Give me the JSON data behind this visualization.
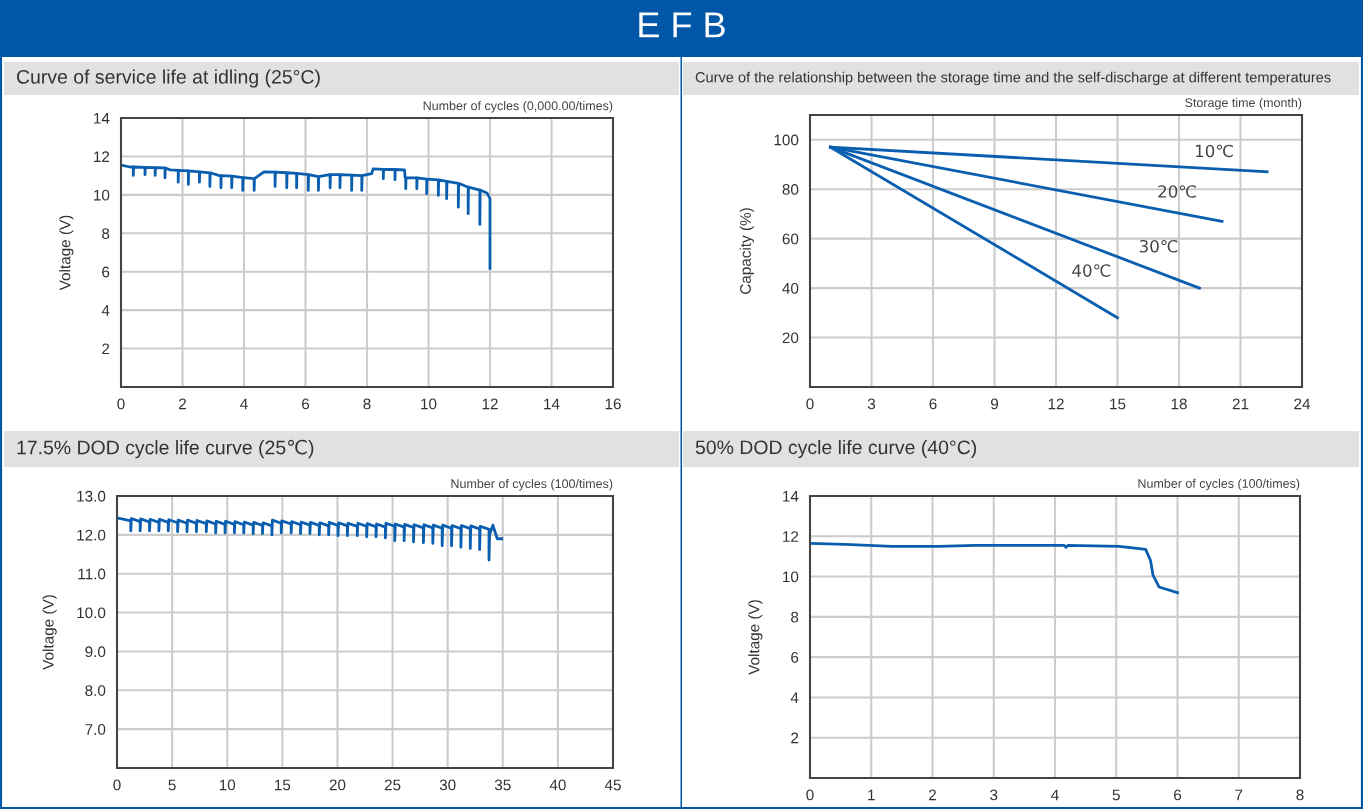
{
  "chart_data": [
    {
      "type": "line",
      "title": "Curve of service life at idling (25°C)",
      "xlabel": "Number of cycles (0,000.00/times)",
      "ylabel": "Voltage (V)",
      "annotations": [
        "E F B"
      ],
      "xlim": [
        0,
        16
      ],
      "xticks": [
        0,
        2,
        4,
        6,
        8,
        10,
        12,
        14,
        16
      ],
      "ylim": [
        0,
        14
      ],
      "yticks": [
        2,
        4,
        6,
        8,
        10,
        12,
        14
      ],
      "grid": true,
      "series": [
        {
          "color": "#0a5eb0",
          "x": [
            0,
            0.3,
            0.4,
            0.4,
            0.41,
            0.78,
            0.78,
            0.79,
            1.11,
            1.11,
            1.12,
            1.43,
            1.43,
            1.44,
            1.6,
            1.86,
            1.86,
            1.87,
            2.19,
            2.19,
            2.2,
            2.55,
            2.55,
            2.56,
            2.89,
            2.89,
            2.9,
            3.2,
            3.25,
            3.25,
            3.26,
            3.6,
            3.6,
            3.61,
            3.96,
            3.96,
            3.97,
            4.33,
            4.33,
            4.34,
            4.65,
            5.01,
            5.01,
            5.02,
            5.39,
            5.39,
            5.4,
            5.71,
            5.71,
            5.72,
            6.09,
            6.09,
            6.1,
            6.42,
            6.42,
            6.43,
            6.6,
            6.8,
            6.8,
            6.81,
            7.12,
            7.12,
            7.13,
            7.5,
            7.5,
            7.51,
            7.83,
            7.83,
            7.84,
            8.15,
            8.2,
            8.53,
            8.53,
            8.54,
            8.91,
            8.91,
            8.92,
            9.22,
            9.24,
            9.26,
            9.26,
            9.27,
            9.62,
            9.62,
            9.63,
            9.94,
            9.94,
            9.95,
            10.32,
            10.32,
            10.33,
            10.59,
            10.59,
            10.6,
            10.97,
            10.97,
            10.98,
            11.29,
            11.29,
            11.3,
            11.67,
            11.67,
            11.68,
            11.9,
            12.0,
            12.0
          ],
          "values": [
            11.55,
            11.45,
            11.45,
            11.01,
            11.45,
            11.43,
            11.05,
            11.43,
            11.42,
            11.01,
            11.42,
            11.4,
            10.89,
            11.4,
            11.3,
            11.28,
            10.66,
            11.28,
            11.25,
            10.54,
            11.25,
            11.2,
            10.66,
            11.2,
            11.15,
            10.44,
            11.15,
            11.0,
            11.0,
            10.37,
            11.0,
            10.98,
            10.37,
            10.98,
            10.9,
            10.23,
            10.9,
            10.85,
            10.23,
            10.85,
            11.2,
            11.18,
            10.44,
            11.18,
            11.15,
            10.37,
            11.15,
            11.12,
            10.37,
            11.12,
            11.05,
            10.23,
            11.05,
            10.95,
            10.23,
            10.95,
            11.0,
            11.05,
            10.37,
            11.05,
            11.05,
            10.37,
            11.05,
            11.03,
            10.23,
            11.03,
            11.0,
            10.23,
            11.0,
            11.1,
            11.35,
            11.33,
            10.84,
            11.33,
            11.32,
            10.79,
            11.32,
            11.3,
            10.9,
            10.9,
            10.32,
            10.9,
            10.88,
            10.32,
            10.88,
            10.82,
            10.06,
            10.82,
            10.78,
            9.97,
            10.78,
            10.7,
            9.8,
            10.7,
            10.6,
            9.36,
            10.6,
            10.4,
            9.02,
            10.4,
            10.25,
            8.46,
            10.25,
            10.1,
            9.8,
            6.17
          ]
        }
      ]
    },
    {
      "type": "line",
      "title": "Curve of the relationship between the storage time and the self-discharge at different temperatures",
      "xlabel": "Storage time (month)",
      "ylabel": "Capacity (%)",
      "xlim": [
        0,
        24
      ],
      "xticks": [
        0,
        3,
        6,
        9,
        12,
        15,
        18,
        21,
        24
      ],
      "ylim": [
        0,
        110
      ],
      "yticks": [
        20,
        40,
        60,
        80,
        100
      ],
      "grid": true,
      "series": [
        {
          "name": "10℃",
          "color": "#0a5eb0",
          "x": [
            1,
            22.3
          ],
          "values": [
            97,
            87
          ]
        },
        {
          "name": "20℃",
          "color": "#0a5eb0",
          "x": [
            1,
            20.1
          ],
          "values": [
            97,
            67
          ]
        },
        {
          "name": "30℃",
          "color": "#0a5eb0",
          "x": [
            1,
            19
          ],
          "values": [
            97,
            40
          ]
        },
        {
          "name": "40℃",
          "color": "#0a5eb0",
          "x": [
            1,
            15
          ],
          "values": [
            97,
            28
          ]
        }
      ]
    },
    {
      "type": "line",
      "title": "17.5% DOD cycle life curve (25℃)",
      "xlabel": "Number of cycles (100/times)",
      "ylabel": "Voltage (V)",
      "xlim": [
        0,
        45
      ],
      "xticks": [
        0,
        5,
        10,
        15,
        20,
        25,
        30,
        35,
        40,
        45
      ],
      "ylim": [
        6,
        13
      ],
      "yticks": [
        {
          "value": 7,
          "label": "7.0"
        },
        {
          "value": 8,
          "label": "8.0"
        },
        {
          "value": 9,
          "label": "9.0"
        },
        {
          "value": 10,
          "label": "10.0"
        },
        {
          "value": 11,
          "label": "11.0"
        },
        {
          "value": 12,
          "label": "12.0"
        },
        {
          "value": 13,
          "label": "13.0"
        }
      ],
      "grid": true,
      "series": [
        {
          "color": "#0a5eb0",
          "x": [
            0,
            1.25,
            1.25,
            1.3,
            2.1,
            2.1,
            2.15,
            2.95,
            2.95,
            3.0,
            3.8,
            3.8,
            3.85,
            4.65,
            4.65,
            4.7,
            5.5,
            5.5,
            5.55,
            6.35,
            6.35,
            6.4,
            7.2,
            7.2,
            7.25,
            8.1,
            8.1,
            8.15,
            8.95,
            8.95,
            9.0,
            9.8,
            9.8,
            9.85,
            10.65,
            10.65,
            10.7,
            11.5,
            11.5,
            11.55,
            12.35,
            12.35,
            12.4,
            13.2,
            13.2,
            13.25,
            14.05,
            14.05,
            14.1,
            14.9,
            14.9,
            14.95,
            15.8,
            15.8,
            15.85,
            16.65,
            16.65,
            16.7,
            17.5,
            17.5,
            17.55,
            18.35,
            18.35,
            18.4,
            19.2,
            19.2,
            19.25,
            20.05,
            20.05,
            20.1,
            20.9,
            20.9,
            20.95,
            21.8,
            21.8,
            21.85,
            22.65,
            22.65,
            22.7,
            23.5,
            23.5,
            23.55,
            24.35,
            24.35,
            24.4,
            25.2,
            25.2,
            25.25,
            26.05,
            26.05,
            26.1,
            26.9,
            26.9,
            26.95,
            27.8,
            27.8,
            27.85,
            28.65,
            28.65,
            28.7,
            29.5,
            29.5,
            29.55,
            30.35,
            30.35,
            30.4,
            31.2,
            31.2,
            31.25,
            32.05,
            32.05,
            32.1,
            32.9,
            32.9,
            32.95,
            33.75,
            33.75,
            33.8,
            34.1,
            34.5,
            34.9
          ],
          "values": [
            12.44,
            12.36,
            12.1,
            12.42,
            12.34,
            12.1,
            12.41,
            12.33,
            12.1,
            12.4,
            12.32,
            12.1,
            12.4,
            12.32,
            12.1,
            12.39,
            12.31,
            12.08,
            12.38,
            12.3,
            12.08,
            12.38,
            12.3,
            12.08,
            12.37,
            12.29,
            12.08,
            12.36,
            12.28,
            12.05,
            12.35,
            12.27,
            12.05,
            12.35,
            12.27,
            12.05,
            12.34,
            12.26,
            12.05,
            12.33,
            12.25,
            12.03,
            12.32,
            12.24,
            12.03,
            12.31,
            12.23,
            12.0,
            12.38,
            12.3,
            12.05,
            12.36,
            12.28,
            12.05,
            12.34,
            12.26,
            12.03,
            12.33,
            12.25,
            12.03,
            12.32,
            12.24,
            12.0,
            12.31,
            12.23,
            12.0,
            12.32,
            12.24,
            11.98,
            12.31,
            12.23,
            11.98,
            12.3,
            12.22,
            11.98,
            12.3,
            12.22,
            11.95,
            12.29,
            12.21,
            11.95,
            12.28,
            12.2,
            11.92,
            12.3,
            12.22,
            11.85,
            12.28,
            12.2,
            11.85,
            12.27,
            12.19,
            11.82,
            12.26,
            12.18,
            11.8,
            12.26,
            12.18,
            11.78,
            12.25,
            12.17,
            11.72,
            12.25,
            12.17,
            11.72,
            12.24,
            12.16,
            11.68,
            12.24,
            12.16,
            11.65,
            12.23,
            12.15,
            11.62,
            12.22,
            12.14,
            11.35,
            12.0,
            12.25,
            11.9,
            11.9
          ]
        }
      ]
    },
    {
      "type": "line",
      "title": "50% DOD cycle life curve (40°C)",
      "xlabel": "Number of cycles (100/times)",
      "ylabel": "Voltage (V)",
      "xlim": [
        0,
        8
      ],
      "xticks": [
        0,
        1,
        2,
        3,
        4,
        5,
        6,
        7,
        8
      ],
      "ylim": [
        0,
        14
      ],
      "yticks": [
        2,
        4,
        6,
        8,
        10,
        12,
        14
      ],
      "grid": true,
      "series": [
        {
          "color": "#0a5eb0",
          "x": [
            0,
            0.57,
            1.34,
            2.1,
            2.7,
            4.15,
            4.18,
            4.21,
            5.05,
            5.48,
            5.56,
            5.6,
            5.7,
            6.0
          ],
          "values": [
            11.65,
            11.6,
            11.5,
            11.5,
            11.55,
            11.55,
            11.45,
            11.55,
            11.5,
            11.35,
            10.8,
            10.07,
            9.48,
            9.2
          ]
        }
      ]
    }
  ]
}
